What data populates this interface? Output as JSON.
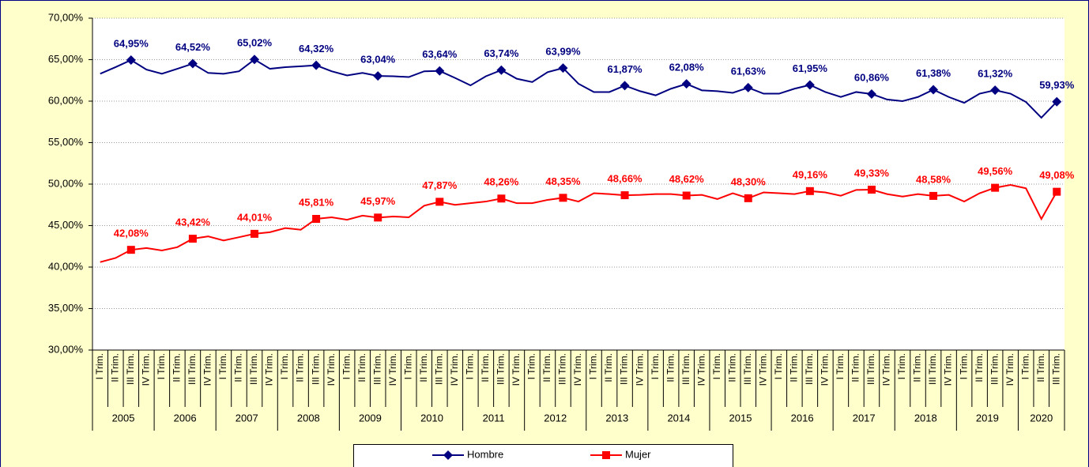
{
  "chart_data": {
    "type": "line",
    "categories": [
      "I Trim.",
      "II Trim.",
      "III Trim.",
      "IV Trim.",
      "I Trim.",
      "II Trim.",
      "III Trim.",
      "IV Trim.",
      "I Trim.",
      "II Trim.",
      "III Trim.",
      "IV Trim.",
      "I Trim.",
      "II Trim.",
      "III Trim.",
      "IV Trim.",
      "I Trim.",
      "II Trim.",
      "III Trim.",
      "IV Trim.",
      "I Trim.",
      "II Trim.",
      "III Trim.",
      "IV Trim.",
      "I Trim.",
      "II Trim.",
      "III Trim.",
      "IV Trim.",
      "I Trim.",
      "II Trim.",
      "III Trim.",
      "IV Trim.",
      "I Trim.",
      "II Trim.",
      "III Trim.",
      "IV Trim.",
      "I Trim.",
      "II Trim.",
      "III Trim.",
      "IV Trim.",
      "I Trim.",
      "II Trim.",
      "III Trim.",
      "IV Trim.",
      "I Trim.",
      "II Trim.",
      "III Trim.",
      "IV Trim.",
      "I Trim.",
      "II Trim.",
      "III Trim.",
      "IV Trim.",
      "I Trim.",
      "II Trim.",
      "III Trim.",
      "IV Trim.",
      "I Trim.",
      "II Trim.",
      "III Trim.",
      "IV Trim.",
      "I Trim.",
      "II Trim.",
      "III Trim."
    ],
    "years": [
      "2005",
      "2006",
      "2007",
      "2008",
      "2009",
      "2010",
      "2011",
      "2012",
      "2013",
      "2014",
      "2015",
      "2016",
      "2017",
      "2018",
      "2019",
      "2020"
    ],
    "series": [
      {
        "name": "Hombre",
        "color": "#000080",
        "marker": "diamond",
        "values": [
          63.3,
          64.1,
          64.95,
          63.8,
          63.3,
          63.9,
          64.52,
          63.4,
          63.3,
          63.6,
          65.02,
          63.9,
          64.1,
          64.2,
          64.32,
          63.6,
          63.1,
          63.4,
          63.04,
          63.0,
          62.9,
          63.6,
          63.64,
          62.8,
          61.9,
          63.0,
          63.74,
          62.7,
          62.3,
          63.5,
          63.99,
          62.1,
          61.1,
          61.1,
          61.87,
          61.2,
          60.7,
          61.5,
          62.08,
          61.3,
          61.2,
          61.0,
          61.63,
          60.9,
          60.9,
          61.5,
          61.95,
          61.1,
          60.5,
          61.1,
          60.86,
          60.2,
          60.0,
          60.5,
          61.38,
          60.5,
          59.8,
          60.9,
          61.32,
          60.9,
          59.9,
          58.0,
          59.93
        ],
        "value_labels": [
          null,
          null,
          "64,95%",
          null,
          null,
          null,
          "64,52%",
          null,
          null,
          null,
          "65,02%",
          null,
          null,
          null,
          "64,32%",
          null,
          null,
          null,
          "63,04%",
          null,
          null,
          null,
          "63,64%",
          null,
          null,
          null,
          "63,74%",
          null,
          null,
          null,
          "63,99%",
          null,
          null,
          null,
          "61,87%",
          null,
          null,
          null,
          "62,08%",
          null,
          null,
          null,
          "61,63%",
          null,
          null,
          null,
          "61,95%",
          null,
          null,
          null,
          "60,86%",
          null,
          null,
          null,
          "61,38%",
          null,
          null,
          null,
          "61,32%",
          null,
          null,
          null,
          "59,93%"
        ]
      },
      {
        "name": "Mujer",
        "color": "#ff0000",
        "marker": "square",
        "values": [
          40.6,
          41.1,
          42.08,
          42.3,
          42.0,
          42.4,
          43.42,
          43.7,
          43.2,
          43.6,
          44.01,
          44.2,
          44.7,
          44.5,
          45.81,
          46.0,
          45.7,
          46.2,
          45.97,
          46.1,
          46.0,
          47.4,
          47.87,
          47.5,
          47.7,
          47.9,
          48.26,
          47.7,
          47.7,
          48.1,
          48.35,
          47.9,
          48.9,
          48.8,
          48.66,
          48.7,
          48.8,
          48.8,
          48.62,
          48.7,
          48.2,
          48.9,
          48.3,
          49.0,
          48.9,
          48.8,
          49.16,
          49.0,
          48.6,
          49.3,
          49.33,
          48.8,
          48.5,
          48.8,
          48.58,
          48.7,
          47.9,
          48.9,
          49.56,
          49.9,
          49.5,
          45.8,
          49.08
        ],
        "value_labels": [
          null,
          null,
          "42,08%",
          null,
          null,
          null,
          "43,42%",
          null,
          null,
          null,
          "44,01%",
          null,
          null,
          null,
          "45,81%",
          null,
          null,
          null,
          "45,97%",
          null,
          null,
          null,
          "47,87%",
          null,
          null,
          null,
          "48,26%",
          null,
          null,
          null,
          "48,35%",
          null,
          null,
          null,
          "48,66%",
          null,
          null,
          null,
          "48,62%",
          null,
          null,
          null,
          "48,30%",
          null,
          null,
          null,
          "49,16%",
          null,
          null,
          null,
          "49,33%",
          null,
          null,
          null,
          "48,58%",
          null,
          null,
          null,
          "49,56%",
          null,
          null,
          null,
          "49,08%"
        ]
      }
    ],
    "ylim": [
      30,
      70
    ],
    "yticks": [
      {
        "value": 30,
        "label": "30,00%"
      },
      {
        "value": 35,
        "label": "35,00%"
      },
      {
        "value": 40,
        "label": "40,00%"
      },
      {
        "value": 45,
        "label": "45,00%"
      },
      {
        "value": 50,
        "label": "50,00%"
      },
      {
        "value": 55,
        "label": "55,00%"
      },
      {
        "value": 60,
        "label": "60,00%"
      },
      {
        "value": 65,
        "label": "65,00%"
      },
      {
        "value": 70,
        "label": "70,00%"
      }
    ],
    "grid": true,
    "legend": "bottom"
  }
}
